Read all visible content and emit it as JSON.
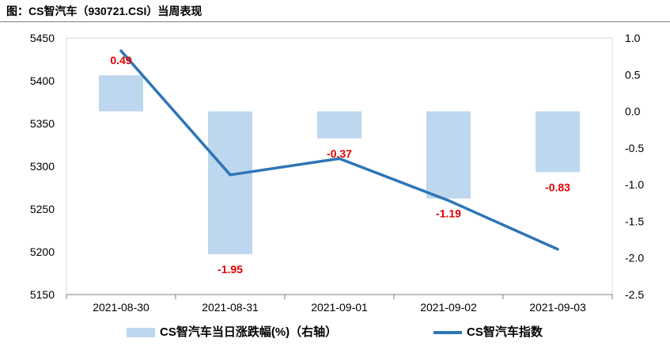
{
  "title": "图：CS智汽车（930721.CSI）当周表现",
  "chart_data": {
    "type": "bar+line",
    "categories": [
      "2021-08-30",
      "2021-08-31",
      "2021-09-01",
      "2021-09-02",
      "2021-09-03"
    ],
    "series": [
      {
        "name": "CS智汽车当日涨跌幅(%)（右轴）",
        "type": "bar",
        "axis": "right",
        "values": [
          0.49,
          -1.95,
          -0.37,
          -1.19,
          -0.83
        ],
        "labels": [
          "0.49",
          "-1.95",
          "-0.37",
          "-1.19",
          "-0.83"
        ],
        "color": "#bdd7ee"
      },
      {
        "name": "CS智汽车指数",
        "type": "line",
        "axis": "left",
        "values": [
          5435,
          5290,
          5309,
          5260,
          5203
        ],
        "color": "#2e75b6"
      }
    ],
    "y_left": {
      "ylim": [
        5150,
        5450
      ],
      "ticks": [
        "5450",
        "5400",
        "5350",
        "5300",
        "5250",
        "5200",
        "5150"
      ]
    },
    "y_right": {
      "ylim": [
        -2.5,
        1.0
      ],
      "ticks": [
        "1.0",
        "0.5",
        "0.0",
        "-0.5",
        "-1.0",
        "-1.5",
        "-2.0",
        "-2.5"
      ]
    },
    "label_color": "#e00000",
    "legend_position": "bottom",
    "grid": false
  }
}
